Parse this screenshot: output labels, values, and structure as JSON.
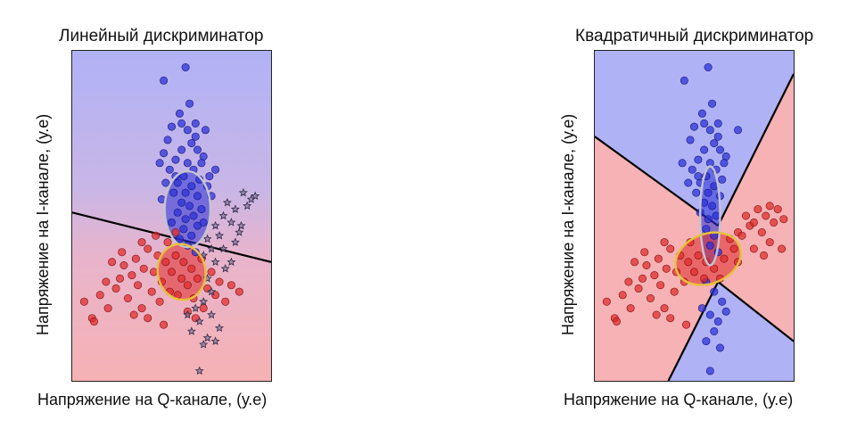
{
  "panels": [
    {
      "title": "Линейный дискриминатор",
      "xlabel": "Напряжение на Q-канале, (у.е)",
      "ylabel": "Напряжение на I-канале, (у.е)"
    },
    {
      "title": "Квадратичный дискриминатор",
      "xlabel": "Напряжение на Q-канале, (у.е)",
      "ylabel": "Напряжение на I-канале, (у.е)"
    }
  ],
  "colors": {
    "blue_region": "#b0b2f6",
    "red_region": "#f6b2b4",
    "blue_points": "#2a2fd8",
    "red_points": "#e02a2a",
    "blue_ellipse": "#c4c4d0",
    "red_ellipse": "#e6c23a",
    "star_points": "#2b2b4a",
    "boundary": "#000000"
  },
  "chart_data": [
    {
      "type": "scatter",
      "title": "Линейный дискриминатор",
      "xlabel": "Напряжение на Q-канале, (у.е)",
      "ylabel": "Напряжение на I-канале, (у.е)",
      "grid": false,
      "boundary": "linear",
      "xlim": [
        0,
        1
      ],
      "ylim": [
        0,
        1
      ],
      "series": [
        {
          "marker": "circle",
          "color": "blue",
          "center": [
            0.58,
            0.52
          ],
          "cov_ellipse": {
            "rx": 0.115,
            "ry": 0.115,
            "angle": 0
          },
          "points": [
            [
              0.57,
              0.95
            ],
            [
              0.46,
              0.91
            ],
            [
              0.59,
              0.84
            ],
            [
              0.62,
              0.78
            ],
            [
              0.54,
              0.81
            ],
            [
              0.67,
              0.76
            ],
            [
              0.6,
              0.72
            ],
            [
              0.48,
              0.73
            ],
            [
              0.63,
              0.7
            ],
            [
              0.55,
              0.7
            ],
            [
              0.66,
              0.68
            ],
            [
              0.44,
              0.66
            ],
            [
              0.52,
              0.67
            ],
            [
              0.58,
              0.66
            ],
            [
              0.61,
              0.64
            ],
            [
              0.49,
              0.64
            ],
            [
              0.72,
              0.64
            ],
            [
              0.56,
              0.62
            ],
            [
              0.64,
              0.61
            ],
            [
              0.53,
              0.6
            ],
            [
              0.47,
              0.6
            ],
            [
              0.6,
              0.59
            ],
            [
              0.68,
              0.59
            ],
            [
              0.57,
              0.57
            ],
            [
              0.51,
              0.57
            ],
            [
              0.63,
              0.56
            ],
            [
              0.55,
              0.54
            ],
            [
              0.59,
              0.53
            ],
            [
              0.65,
              0.52
            ],
            [
              0.53,
              0.51
            ],
            [
              0.61,
              0.5
            ],
            [
              0.57,
              0.49
            ],
            [
              0.5,
              0.48
            ],
            [
              0.63,
              0.47
            ],
            [
              0.56,
              0.46
            ],
            [
              0.6,
              0.44
            ],
            [
              0.54,
              0.43
            ],
            [
              0.58,
              0.41
            ],
            [
              0.62,
              0.39
            ],
            [
              0.52,
              0.62
            ],
            [
              0.62,
              0.74
            ],
            [
              0.5,
              0.77
            ],
            [
              0.58,
              0.76
            ],
            [
              0.65,
              0.66
            ],
            [
              0.46,
              0.69
            ],
            [
              0.7,
              0.56
            ],
            [
              0.45,
              0.55
            ],
            [
              0.66,
              0.48
            ],
            [
              0.69,
              0.62
            ],
            [
              0.55,
              0.78
            ]
          ]
        },
        {
          "marker": "circle",
          "color": "red",
          "center": [
            0.55,
            0.33
          ],
          "cov_ellipse": {
            "rx": 0.12,
            "ry": 0.085,
            "angle": -10
          },
          "points": [
            [
              0.06,
              0.24
            ],
            [
              0.1,
              0.19
            ],
            [
              0.11,
              0.18
            ],
            [
              0.14,
              0.26
            ],
            [
              0.17,
              0.3
            ],
            [
              0.2,
              0.36
            ],
            [
              0.22,
              0.28
            ],
            [
              0.24,
              0.31
            ],
            [
              0.26,
              0.35
            ],
            [
              0.28,
              0.25
            ],
            [
              0.3,
              0.32
            ],
            [
              0.32,
              0.37
            ],
            [
              0.33,
              0.29
            ],
            [
              0.35,
              0.22
            ],
            [
              0.36,
              0.34
            ],
            [
              0.38,
              0.4
            ],
            [
              0.4,
              0.27
            ],
            [
              0.41,
              0.33
            ],
            [
              0.43,
              0.38
            ],
            [
              0.44,
              0.24
            ],
            [
              0.45,
              0.3
            ],
            [
              0.47,
              0.36
            ],
            [
              0.48,
              0.42
            ],
            [
              0.49,
              0.27
            ],
            [
              0.5,
              0.33
            ],
            [
              0.52,
              0.38
            ],
            [
              0.53,
              0.26
            ],
            [
              0.55,
              0.31
            ],
            [
              0.56,
              0.36
            ],
            [
              0.58,
              0.29
            ],
            [
              0.6,
              0.34
            ],
            [
              0.61,
              0.25
            ],
            [
              0.63,
              0.31
            ],
            [
              0.65,
              0.37
            ],
            [
              0.66,
              0.22
            ],
            [
              0.68,
              0.28
            ],
            [
              0.7,
              0.33
            ],
            [
              0.72,
              0.26
            ],
            [
              0.74,
              0.3
            ],
            [
              0.77,
              0.24
            ],
            [
              0.8,
              0.29
            ],
            [
              0.84,
              0.27
            ],
            [
              0.38,
              0.19
            ],
            [
              0.46,
              0.17
            ],
            [
              0.31,
              0.2
            ],
            [
              0.52,
              0.45
            ],
            [
              0.42,
              0.44
            ],
            [
              0.58,
              0.21
            ],
            [
              0.25,
              0.39
            ],
            [
              0.18,
              0.22
            ],
            [
              0.62,
              0.19
            ],
            [
              0.35,
              0.42
            ]
          ]
        },
        {
          "marker": "star",
          "color": "dark",
          "points": [
            [
              0.68,
              0.43
            ],
            [
              0.72,
              0.47
            ],
            [
              0.76,
              0.5
            ],
            [
              0.8,
              0.48
            ],
            [
              0.84,
              0.45
            ],
            [
              0.88,
              0.53
            ],
            [
              0.9,
              0.55
            ],
            [
              0.86,
              0.57
            ],
            [
              0.82,
              0.52
            ],
            [
              0.78,
              0.54
            ],
            [
              0.74,
              0.44
            ],
            [
              0.7,
              0.4
            ],
            [
              0.66,
              0.38
            ],
            [
              0.72,
              0.36
            ],
            [
              0.76,
              0.4
            ],
            [
              0.82,
              0.42
            ],
            [
              0.68,
              0.31
            ],
            [
              0.7,
              0.27
            ],
            [
              0.66,
              0.24
            ],
            [
              0.62,
              0.22
            ],
            [
              0.7,
              0.2
            ],
            [
              0.64,
              0.18
            ],
            [
              0.58,
              0.2
            ],
            [
              0.74,
              0.16
            ],
            [
              0.68,
              0.13
            ],
            [
              0.72,
              0.12
            ],
            [
              0.6,
              0.15
            ],
            [
              0.66,
              0.11
            ],
            [
              0.64,
              0.03
            ],
            [
              0.92,
              0.56
            ],
            [
              0.85,
              0.47
            ],
            [
              0.8,
              0.36
            ],
            [
              0.77,
              0.34
            ]
          ]
        }
      ]
    },
    {
      "type": "scatter",
      "title": "Квадратичный дискриминатор",
      "xlabel": "Напряжение на Q-канале, (у.е)",
      "ylabel": "Напряжение на I-канале, (у.е)",
      "grid": false,
      "boundary": "quadratic",
      "xlim": [
        0,
        1
      ],
      "ylim": [
        0,
        1
      ],
      "series": [
        {
          "marker": "circle",
          "color": "blue",
          "center": [
            0.58,
            0.5
          ],
          "cov_ellipse": {
            "rx": 0.05,
            "ry": 0.15,
            "angle": 0
          },
          "points": [
            [
              0.57,
              0.95
            ],
            [
              0.45,
              0.91
            ],
            [
              0.59,
              0.84
            ],
            [
              0.62,
              0.78
            ],
            [
              0.54,
              0.81
            ],
            [
              0.72,
              0.76
            ],
            [
              0.6,
              0.72
            ],
            [
              0.48,
              0.73
            ],
            [
              0.63,
              0.7
            ],
            [
              0.55,
              0.7
            ],
            [
              0.66,
              0.68
            ],
            [
              0.44,
              0.66
            ],
            [
              0.52,
              0.67
            ],
            [
              0.58,
              0.66
            ],
            [
              0.61,
              0.64
            ],
            [
              0.49,
              0.64
            ],
            [
              0.56,
              0.62
            ],
            [
              0.64,
              0.61
            ],
            [
              0.53,
              0.6
            ],
            [
              0.47,
              0.6
            ],
            [
              0.6,
              0.59
            ],
            [
              0.57,
              0.57
            ],
            [
              0.51,
              0.57
            ],
            [
              0.63,
              0.56
            ],
            [
              0.55,
              0.54
            ],
            [
              0.59,
              0.53
            ],
            [
              0.53,
              0.51
            ],
            [
              0.61,
              0.5
            ],
            [
              0.57,
              0.49
            ],
            [
              0.56,
              0.46
            ],
            [
              0.6,
              0.44
            ],
            [
              0.58,
              0.41
            ],
            [
              0.62,
              0.39
            ],
            [
              0.52,
              0.62
            ],
            [
              0.62,
              0.74
            ],
            [
              0.5,
              0.77
            ],
            [
              0.58,
              0.76
            ],
            [
              0.65,
              0.66
            ],
            [
              0.55,
              0.78
            ],
            [
              0.56,
              0.3
            ],
            [
              0.6,
              0.27
            ],
            [
              0.64,
              0.24
            ],
            [
              0.54,
              0.22
            ],
            [
              0.58,
              0.2
            ],
            [
              0.62,
              0.18
            ],
            [
              0.66,
              0.21
            ],
            [
              0.6,
              0.15
            ],
            [
              0.56,
              0.12
            ],
            [
              0.63,
              0.1
            ],
            [
              0.58,
              0.03
            ]
          ]
        },
        {
          "marker": "circle",
          "color": "red",
          "center": [
            0.57,
            0.37
          ],
          "cov_ellipse": {
            "rx": 0.17,
            "ry": 0.075,
            "angle": -22
          },
          "points": [
            [
              0.06,
              0.24
            ],
            [
              0.1,
              0.19
            ],
            [
              0.11,
              0.18
            ],
            [
              0.14,
              0.26
            ],
            [
              0.17,
              0.3
            ],
            [
              0.2,
              0.36
            ],
            [
              0.22,
              0.28
            ],
            [
              0.24,
              0.31
            ],
            [
              0.26,
              0.35
            ],
            [
              0.28,
              0.25
            ],
            [
              0.3,
              0.32
            ],
            [
              0.32,
              0.37
            ],
            [
              0.33,
              0.29
            ],
            [
              0.35,
              0.22
            ],
            [
              0.36,
              0.34
            ],
            [
              0.38,
              0.4
            ],
            [
              0.4,
              0.27
            ],
            [
              0.41,
              0.33
            ],
            [
              0.43,
              0.38
            ],
            [
              0.45,
              0.3
            ],
            [
              0.47,
              0.36
            ],
            [
              0.48,
              0.42
            ],
            [
              0.5,
              0.33
            ],
            [
              0.52,
              0.38
            ],
            [
              0.55,
              0.31
            ],
            [
              0.56,
              0.36
            ],
            [
              0.6,
              0.34
            ],
            [
              0.63,
              0.31
            ],
            [
              0.65,
              0.37
            ],
            [
              0.68,
              0.43
            ],
            [
              0.7,
              0.4
            ],
            [
              0.72,
              0.45
            ],
            [
              0.74,
              0.44
            ],
            [
              0.76,
              0.5
            ],
            [
              0.78,
              0.47
            ],
            [
              0.8,
              0.48
            ],
            [
              0.82,
              0.52
            ],
            [
              0.84,
              0.45
            ],
            [
              0.86,
              0.5
            ],
            [
              0.88,
              0.53
            ],
            [
              0.9,
              0.48
            ],
            [
              0.92,
              0.52
            ],
            [
              0.95,
              0.49
            ],
            [
              0.88,
              0.42
            ],
            [
              0.85,
              0.38
            ],
            [
              0.8,
              0.4
            ],
            [
              0.72,
              0.36
            ],
            [
              0.38,
              0.19
            ],
            [
              0.46,
              0.17
            ],
            [
              0.31,
              0.2
            ],
            [
              0.25,
              0.39
            ],
            [
              0.18,
              0.22
            ],
            [
              0.35,
              0.42
            ],
            [
              0.94,
              0.4
            ]
          ]
        }
      ]
    }
  ]
}
